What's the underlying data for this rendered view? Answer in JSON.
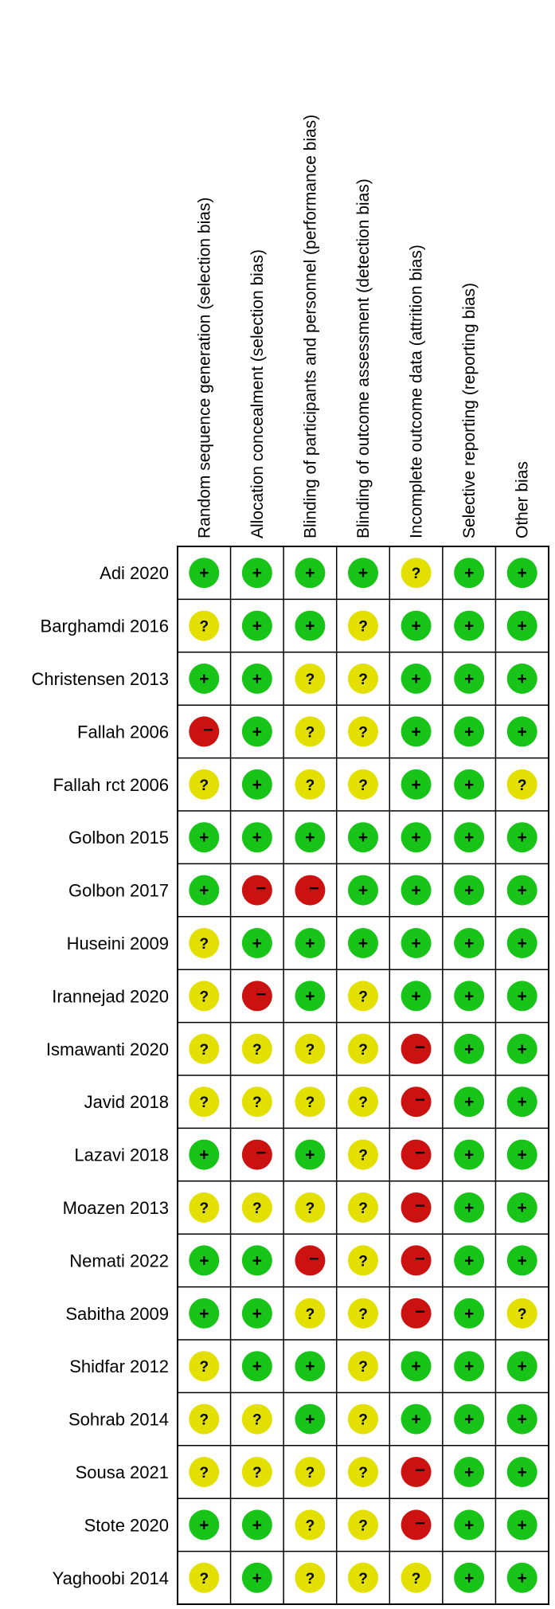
{
  "chart_data": {
    "type": "table",
    "columns": [
      "Random sequence generation (selection bias)",
      "Allocation concealment (selection bias)",
      "Blinding of participants and personnel (performance bias)",
      "Blinding of outcome assessment (detection bias)",
      "Incomplete outcome data (attrition bias)",
      "Selective reporting (reporting bias)",
      "Other bias"
    ],
    "rows": [
      {
        "study": "Adi 2020",
        "ratings": [
          "low",
          "low",
          "low",
          "low",
          "unclear",
          "low",
          "low"
        ]
      },
      {
        "study": "Barghamdi 2016",
        "ratings": [
          "unclear",
          "low",
          "low",
          "unclear",
          "low",
          "low",
          "low"
        ]
      },
      {
        "study": "Christensen 2013",
        "ratings": [
          "low",
          "low",
          "unclear",
          "unclear",
          "low",
          "low",
          "low"
        ]
      },
      {
        "study": "Fallah 2006",
        "ratings": [
          "high",
          "low",
          "unclear",
          "unclear",
          "low",
          "low",
          "low"
        ]
      },
      {
        "study": "Fallah rct 2006",
        "ratings": [
          "unclear",
          "low",
          "unclear",
          "unclear",
          "low",
          "low",
          "unclear"
        ]
      },
      {
        "study": "Golbon 2015",
        "ratings": [
          "low",
          "low",
          "low",
          "low",
          "low",
          "low",
          "low"
        ]
      },
      {
        "study": "Golbon 2017",
        "ratings": [
          "low",
          "high",
          "high",
          "low",
          "low",
          "low",
          "low"
        ]
      },
      {
        "study": "Huseini 2009",
        "ratings": [
          "unclear",
          "low",
          "low",
          "low",
          "low",
          "low",
          "low"
        ]
      },
      {
        "study": "Irannejad 2020",
        "ratings": [
          "unclear",
          "high",
          "low",
          "unclear",
          "low",
          "low",
          "low"
        ]
      },
      {
        "study": "Ismawanti 2020",
        "ratings": [
          "unclear",
          "unclear",
          "unclear",
          "unclear",
          "high",
          "low",
          "low"
        ]
      },
      {
        "study": "Javid 2018",
        "ratings": [
          "unclear",
          "unclear",
          "unclear",
          "unclear",
          "high",
          "low",
          "low"
        ]
      },
      {
        "study": "Lazavi 2018",
        "ratings": [
          "low",
          "high",
          "low",
          "unclear",
          "high",
          "low",
          "low"
        ]
      },
      {
        "study": "Moazen 2013",
        "ratings": [
          "unclear",
          "unclear",
          "unclear",
          "unclear",
          "high",
          "low",
          "low"
        ]
      },
      {
        "study": "Nemati 2022",
        "ratings": [
          "low",
          "low",
          "high",
          "unclear",
          "high",
          "low",
          "low"
        ]
      },
      {
        "study": "Sabitha 2009",
        "ratings": [
          "low",
          "low",
          "unclear",
          "unclear",
          "high",
          "low",
          "unclear"
        ]
      },
      {
        "study": "Shidfar 2012",
        "ratings": [
          "unclear",
          "low",
          "low",
          "unclear",
          "low",
          "low",
          "low"
        ]
      },
      {
        "study": "Sohrab 2014",
        "ratings": [
          "unclear",
          "unclear",
          "low",
          "unclear",
          "low",
          "low",
          "low"
        ]
      },
      {
        "study": "Sousa 2021",
        "ratings": [
          "unclear",
          "unclear",
          "unclear",
          "unclear",
          "high",
          "low",
          "low"
        ]
      },
      {
        "study": "Stote 2020",
        "ratings": [
          "low",
          "low",
          "unclear",
          "unclear",
          "high",
          "low",
          "low"
        ]
      },
      {
        "study": "Yaghoobi 2014",
        "ratings": [
          "unclear",
          "low",
          "unclear",
          "unclear",
          "unclear",
          "low",
          "low"
        ]
      }
    ],
    "rating_symbols": {
      "low": "+",
      "unclear": "?",
      "high": "−"
    },
    "colors": {
      "low": "#19c419",
      "unclear": "#e3e000",
      "high": "#cc1111",
      "grid": "#000000",
      "background": "#ffffff"
    },
    "legend": "none"
  }
}
